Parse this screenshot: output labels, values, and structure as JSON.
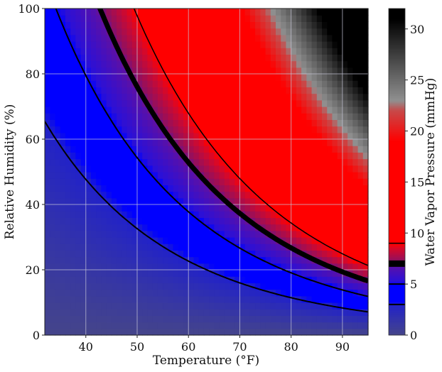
{
  "chart_data": {
    "type": "heatmap",
    "xlabel": "Temperature (°F)",
    "ylabel": "Relative Humidity (%)",
    "xlim": [
      32,
      95
    ],
    "ylim": [
      0,
      100
    ],
    "xticks": [
      40,
      50,
      60,
      70,
      80,
      90
    ],
    "yticks": [
      0,
      20,
      40,
      60,
      80,
      100
    ],
    "grid": true,
    "grid_color": "#c8c8d8",
    "grid_resolution": {
      "x_step_F": 1,
      "y_step_pct": 2
    },
    "z_quantity": "water vapor pressure = RH/100 × saturation vapor pressure(T)",
    "contour_levels": [
      3,
      5,
      7,
      9
    ],
    "contour_color": "#000000",
    "highlight_level": 7,
    "colorbar": {
      "label": "Water Vapor Pressure (mmHg)",
      "range": [
        0,
        32
      ],
      "ticks": [
        0,
        5,
        10,
        15,
        20,
        25,
        30
      ],
      "placement": "right"
    },
    "colormap": [
      {
        "v": 0,
        "color": "#45458a"
      },
      {
        "v": 3,
        "color": "#2222c8"
      },
      {
        "v": 3.3,
        "color": "#0000ff"
      },
      {
        "v": 5,
        "color": "#0000ff"
      },
      {
        "v": 5.3,
        "color": "#2a10d8"
      },
      {
        "v": 6.8,
        "color": "#5a10a8"
      },
      {
        "v": 7.3,
        "color": "#901060"
      },
      {
        "v": 8.5,
        "color": "#d80828"
      },
      {
        "v": 9,
        "color": "#ff0000"
      },
      {
        "v": 19,
        "color": "#ff0000"
      },
      {
        "v": 22,
        "color": "#c84848"
      },
      {
        "v": 23,
        "color": "#909090"
      },
      {
        "v": 31,
        "color": "#000000"
      },
      {
        "v": 32,
        "color": "#000000"
      }
    ]
  }
}
